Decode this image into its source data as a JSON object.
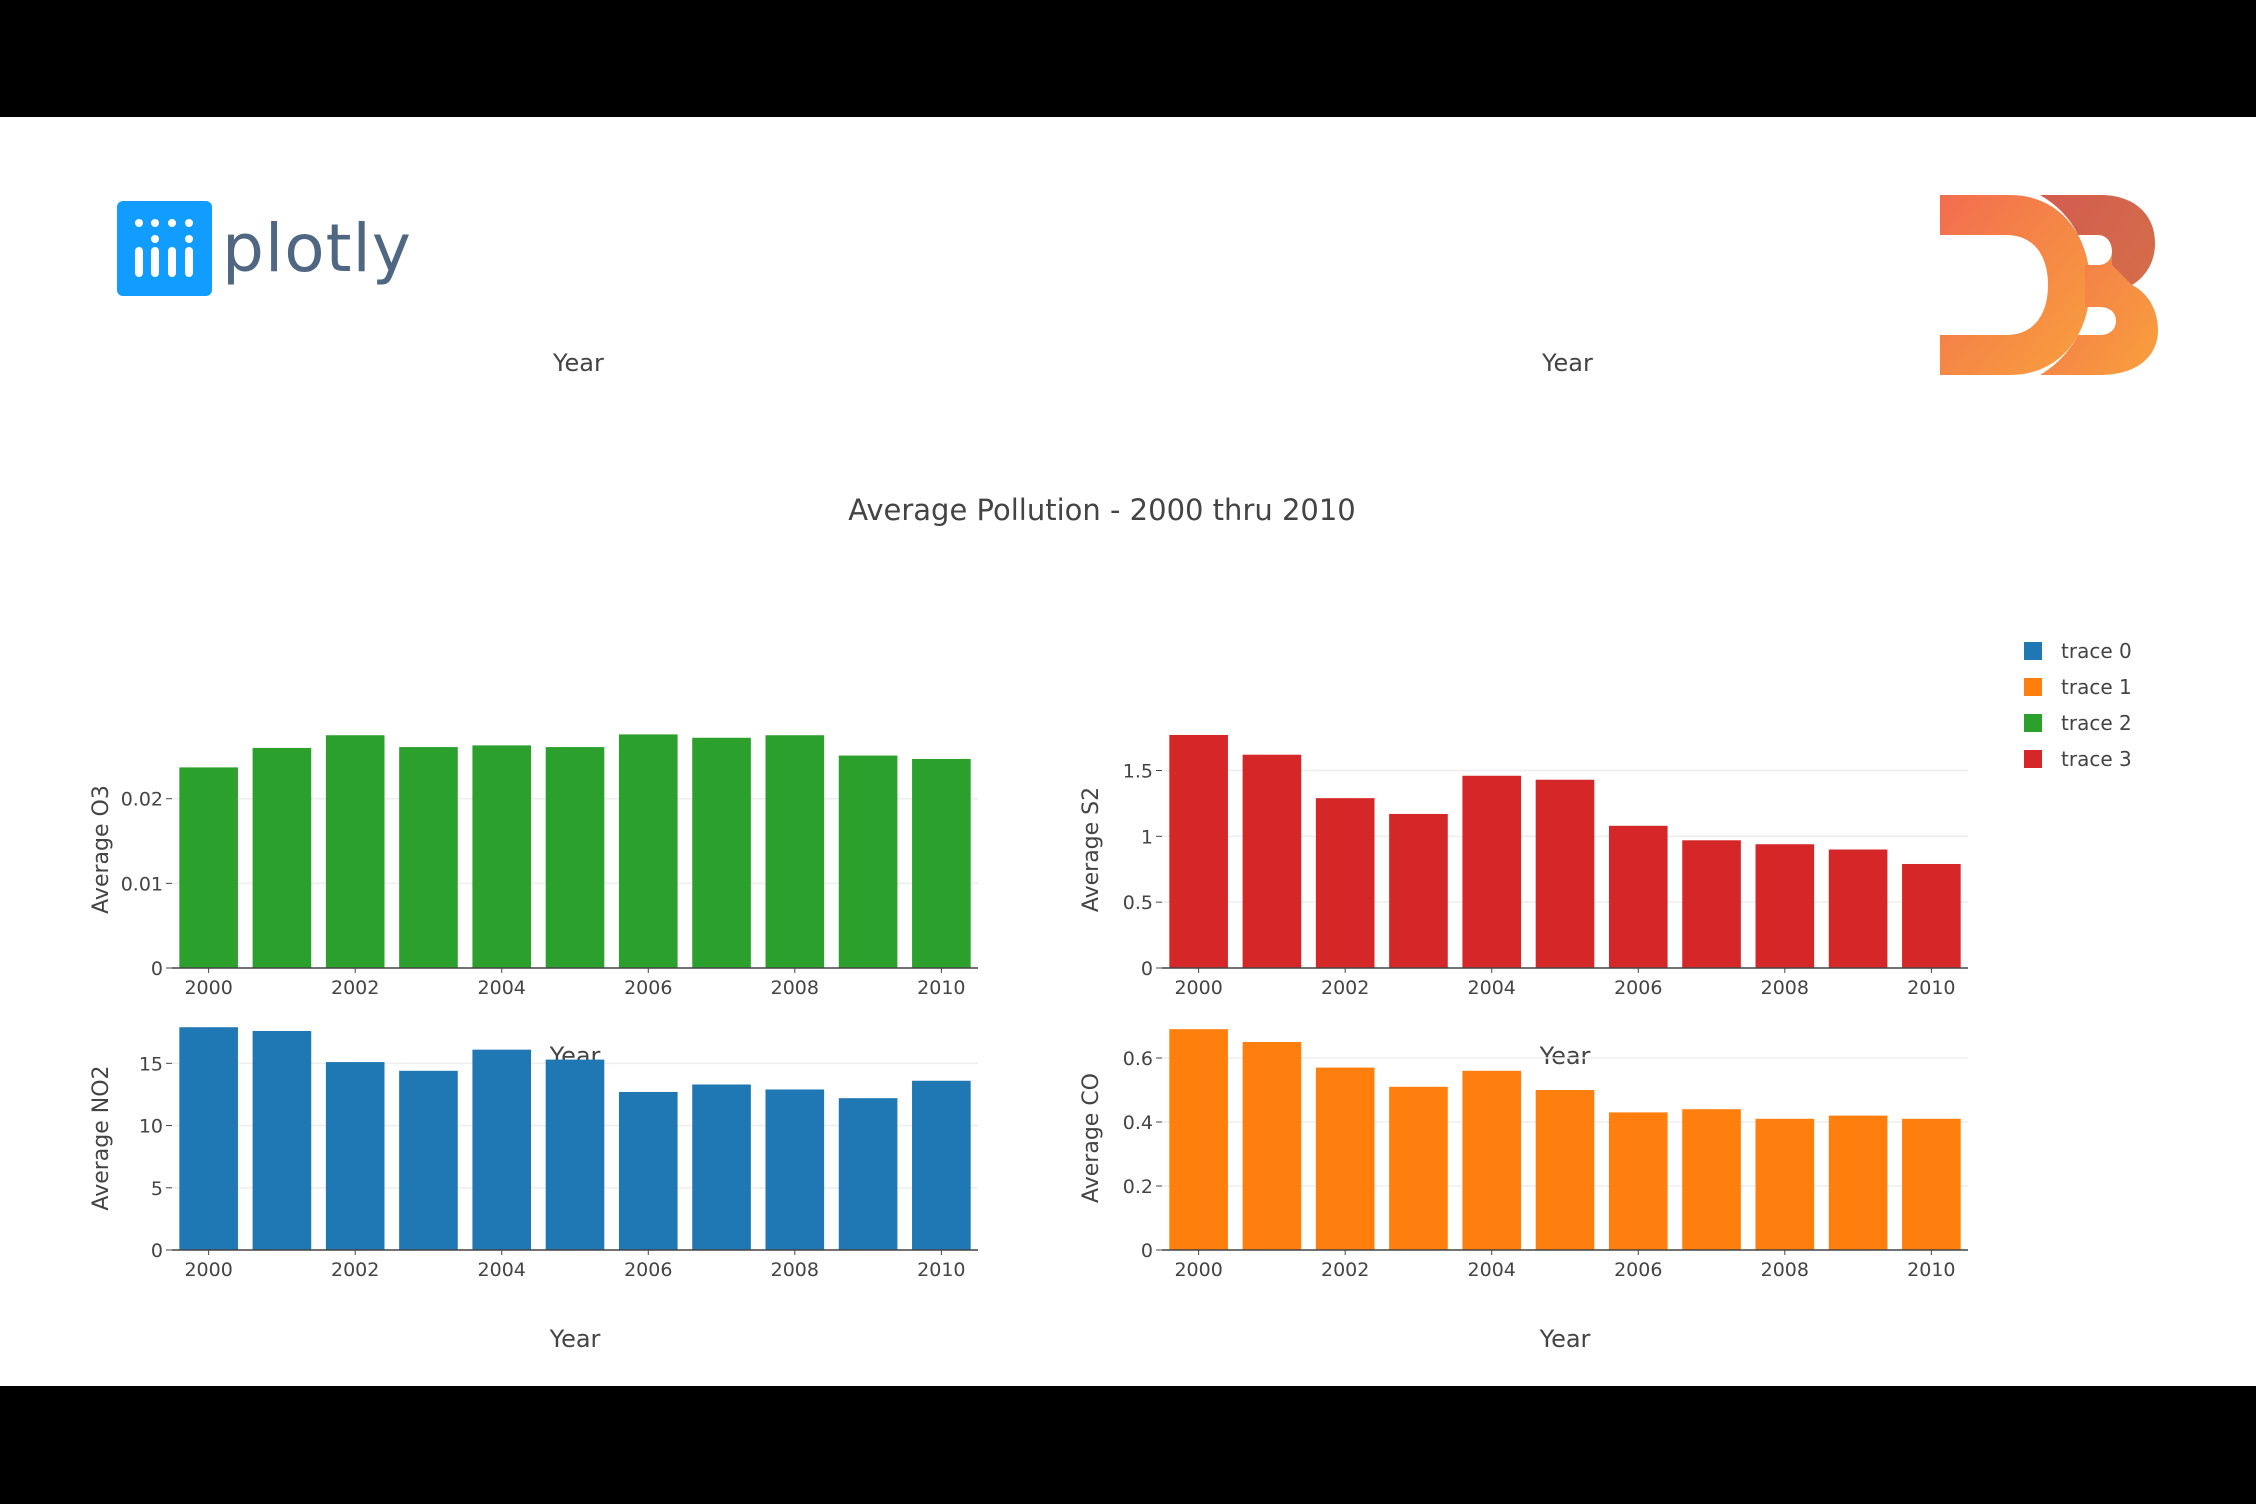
{
  "logos": {
    "plotly": {
      "wordmark": "plotly",
      "accent": "#119dff",
      "text_color": "#506784"
    },
    "d3": {
      "name": "D3",
      "colors": [
        "#f9a03c",
        "#f26d50",
        "#b84e51"
      ]
    }
  },
  "ghost_labels": {
    "left": "Year",
    "right": "Year"
  },
  "chart_data": [
    {
      "type": "bar",
      "title": "Average Pollution - 2000 thru 2010",
      "subplot": "top-left",
      "categories": [
        2000,
        2001,
        2002,
        2003,
        2004,
        2005,
        2006,
        2007,
        2008,
        2009,
        2010
      ],
      "series": [
        {
          "name": "trace 2",
          "color": "#2ca02c",
          "values": [
            0.0237,
            0.026,
            0.0275,
            0.0261,
            0.0263,
            0.0261,
            0.0276,
            0.0272,
            0.0275,
            0.0251,
            0.0247
          ]
        }
      ],
      "xlabel": "Year",
      "ylabel": "Average O3",
      "ylim": [
        0,
        0.028
      ],
      "yticks": [
        0,
        0.01,
        0.02
      ],
      "ytick_labels": [
        "0",
        "0.01",
        "0.02"
      ],
      "xticks": [
        2000,
        2002,
        2004,
        2006,
        2008,
        2010
      ],
      "grid": true
    },
    {
      "type": "bar",
      "subplot": "top-right",
      "categories": [
        2000,
        2001,
        2002,
        2003,
        2004,
        2005,
        2006,
        2007,
        2008,
        2009,
        2010
      ],
      "series": [
        {
          "name": "trace 3",
          "color": "#d62728",
          "values": [
            1.77,
            1.62,
            1.29,
            1.17,
            1.46,
            1.43,
            1.08,
            0.97,
            0.94,
            0.9,
            0.79
          ]
        }
      ],
      "xlabel": "Year",
      "ylabel": "Average S2",
      "ylim": [
        0,
        1.8
      ],
      "yticks": [
        0,
        0.5,
        1,
        1.5
      ],
      "ytick_labels": [
        "0",
        "0.5",
        "1",
        "1.5"
      ],
      "xticks": [
        2000,
        2002,
        2004,
        2006,
        2008,
        2010
      ],
      "grid": true
    },
    {
      "type": "bar",
      "subplot": "bottom-left",
      "categories": [
        2000,
        2001,
        2002,
        2003,
        2004,
        2005,
        2006,
        2007,
        2008,
        2009,
        2010
      ],
      "series": [
        {
          "name": "trace 0",
          "color": "#1f77b4",
          "values": [
            17.9,
            17.6,
            15.1,
            14.4,
            16.1,
            15.3,
            12.7,
            13.3,
            12.9,
            12.2,
            13.6
          ]
        }
      ],
      "xlabel": "Year",
      "ylabel": "Average NO2",
      "ylim": [
        0,
        18
      ],
      "yticks": [
        0,
        5,
        10,
        15
      ],
      "ytick_labels": [
        "0",
        "5",
        "10",
        "15"
      ],
      "xticks": [
        2000,
        2002,
        2004,
        2006,
        2008,
        2010
      ],
      "grid": true
    },
    {
      "type": "bar",
      "subplot": "bottom-right",
      "categories": [
        2000,
        2001,
        2002,
        2003,
        2004,
        2005,
        2006,
        2007,
        2008,
        2009,
        2010
      ],
      "series": [
        {
          "name": "trace 1",
          "color": "#ff7f0e",
          "values": [
            0.69,
            0.65,
            0.57,
            0.51,
            0.56,
            0.5,
            0.43,
            0.44,
            0.41,
            0.42,
            0.41
          ]
        }
      ],
      "xlabel": "Year",
      "ylabel": "Average CO",
      "ylim": [
        0,
        0.7
      ],
      "yticks": [
        0,
        0.2,
        0.4,
        0.6
      ],
      "ytick_labels": [
        "0",
        "0.2",
        "0.4",
        "0.6"
      ],
      "xticks": [
        2000,
        2002,
        2004,
        2006,
        2008,
        2010
      ],
      "grid": true
    }
  ],
  "legend": {
    "position": "top-right",
    "items": [
      {
        "label": "trace 0",
        "color": "#1f77b4"
      },
      {
        "label": "trace 1",
        "color": "#ff7f0e"
      },
      {
        "label": "trace 2",
        "color": "#2ca02c"
      },
      {
        "label": "trace 3",
        "color": "#d62728"
      }
    ]
  }
}
